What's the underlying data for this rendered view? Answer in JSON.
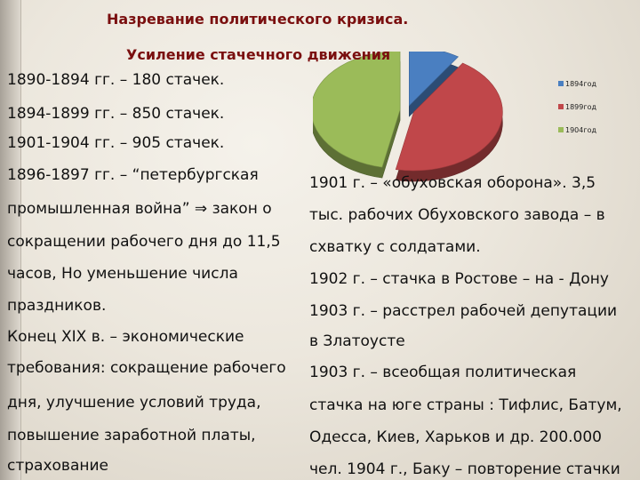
{
  "slide": {
    "title": "Назревание политического кризиса.",
    "subtitle": "Усиление стачечного движения"
  },
  "left_lines": [
    "1890-1894 гг. – 180 стачек.",
    "1894-1899 гг. – 850 стачек.",
    "1901-1904 гг. – 905 стачек.",
    "1896-1897 гг. – “петербургская",
    "промышленная война” ⇒ закон о",
    "сокращении рабочего дня до 11,5",
    "часов, Но уменьшение числа",
    "праздников.",
    "Конец XIX в. – экономические",
    "требования: сокращение рабочего",
    "дня, улучшение условий труда,",
    "повышение заработной платы,",
    "страхование"
  ],
  "right_lines": [
    "1901 г. – «обуховская оборона». 3,5",
    "тыс. рабочих Обуховского завода – в",
    "схватку с солдатами.",
    "1902 г. – стачка в Ростове – на - Дону",
    "1903 г. – расстрел рабочей депутации",
    "в Златоусте",
    "1903 г. – всеобщая политическая",
    "стачка на юге страны : Тифлис, Батум,",
    "Одесса, Киев, Харьков и др. 200.000",
    "чел. 1904 г., Баку – повторение стачки"
  ],
  "chart_data": {
    "type": "pie",
    "categories": [
      "1894год",
      "1899год",
      "1904год"
    ],
    "values": [
      180,
      850,
      905
    ],
    "colors": [
      "#4a7fc1",
      "#c0474a",
      "#9bbb59"
    ],
    "legend_position": "right"
  }
}
